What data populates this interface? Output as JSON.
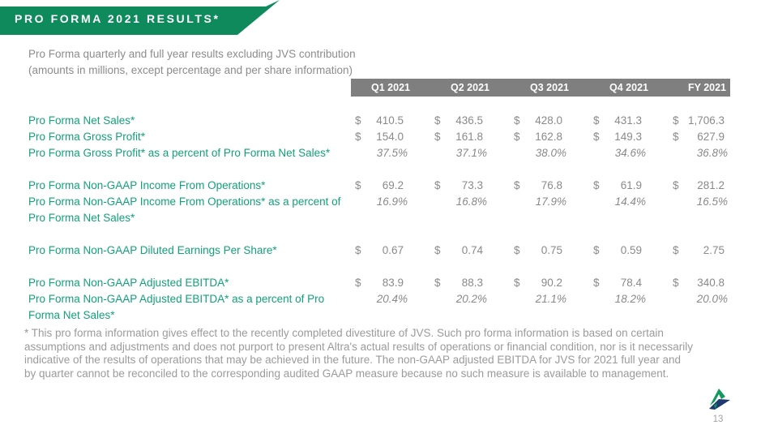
{
  "slide": {
    "title": "PRO FORMA 2021 RESULTS*",
    "subtitle_line1": "Pro Forma quarterly and full year results excluding JVS contribution",
    "subtitle_line2": "(amounts in millions, except percentage and per share information)",
    "page_number": "13"
  },
  "colors": {
    "banner_green": "#0e8a5c",
    "header_bar_gray": "#7f7f7f",
    "label_green": "#12a277",
    "value_gray": "#8a8a8a",
    "footnote_gray": "#9b9b9b",
    "logo_navy": "#1f3a6e",
    "logo_green": "#15995f"
  },
  "table": {
    "currency_symbol": "$",
    "columns": [
      "Q1 2021",
      "Q2 2021",
      "Q3 2021",
      "Q4 2021",
      "FY 2021"
    ],
    "rows": [
      {
        "label": "Pro Forma Net Sales*",
        "type": "dollar",
        "values": [
          "410.5",
          "436.5",
          "428.0",
          "431.3",
          "1,706.3"
        ]
      },
      {
        "label": "Pro Forma Gross Profit*",
        "type": "dollar",
        "values": [
          "154.0",
          "161.8",
          "162.8",
          "149.3",
          "627.9"
        ]
      },
      {
        "label": "Pro Forma Gross Profit* as a percent of Pro Forma Net Sales*",
        "type": "percent",
        "values": [
          "37.5%",
          "37.1%",
          "38.0%",
          "34.6%",
          "36.8%"
        ]
      },
      {
        "label": "Pro Forma Non-GAAP Income From Operations*",
        "type": "dollar",
        "gap_before": true,
        "values": [
          "69.2",
          "73.3",
          "76.8",
          "61.9",
          "281.2"
        ]
      },
      {
        "label": "Pro Forma Non-GAAP Income From Operations* as a percent of Pro Forma Net Sales*",
        "type": "percent",
        "values": [
          "16.9%",
          "16.8%",
          "17.9%",
          "14.4%",
          "16.5%"
        ]
      },
      {
        "label": "Pro Forma Non-GAAP Diluted Earnings Per Share*",
        "type": "dollar",
        "gap_before": true,
        "values": [
          "0.67",
          "0.74",
          "0.75",
          "0.59",
          "2.75"
        ]
      },
      {
        "label": "Pro Forma Non-GAAP Adjusted EBITDA*",
        "type": "dollar",
        "gap_before": true,
        "values": [
          "83.9",
          "88.3",
          "90.2",
          "78.4",
          "340.8"
        ]
      },
      {
        "label": "Pro Forma Non-GAAP Adjusted EBITDA* as a percent of Pro Forma Net Sales*",
        "type": "percent",
        "values": [
          "20.4%",
          "20.2%",
          "21.1%",
          "18.2%",
          "20.0%"
        ]
      }
    ]
  },
  "footnote_lines": [
    "* This pro forma information gives effect to the recently completed divestiture of JVS.  Such pro forma information is based on certain",
    "assumptions and adjustments and does not purport to present Altra's actual results of operations or financial condition, nor is it necessarily",
    "indicative of the results of operations that may be achieved in the future.  The non-GAAP adjusted EBITDA for JVS for 2021 full year and",
    "by quarter cannot be reconciled to the corresponding audited GAAP measure because no such measure is available to management."
  ]
}
